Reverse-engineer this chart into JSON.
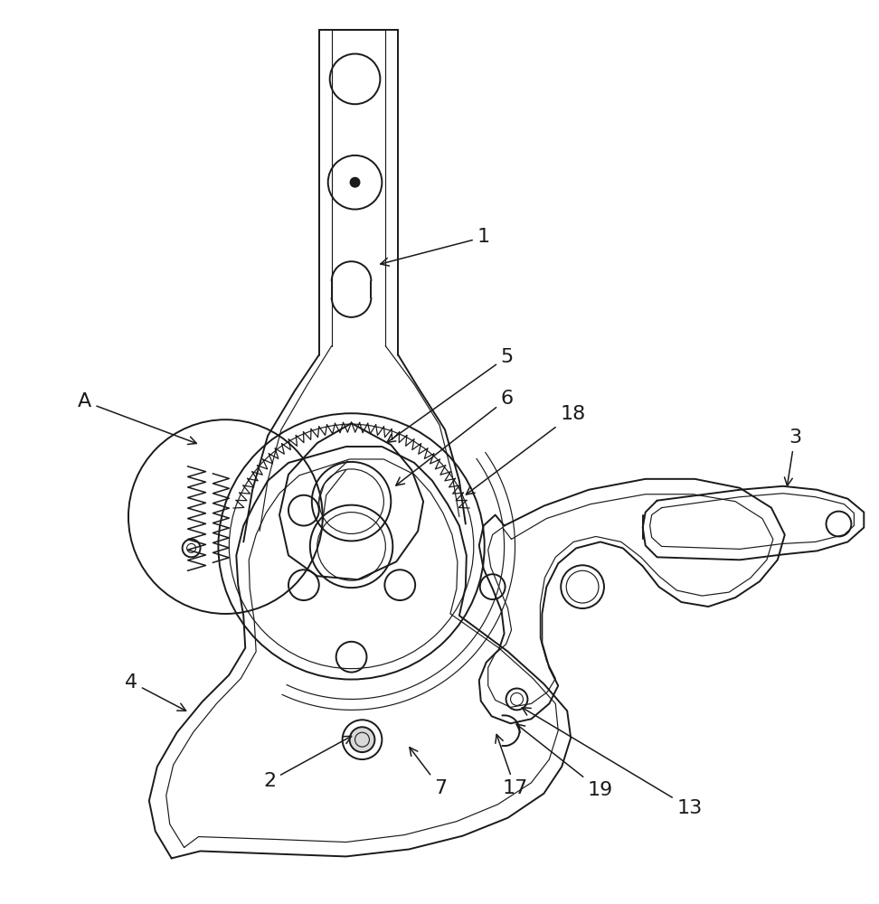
{
  "background_color": "#ffffff",
  "line_color": "#1a1a1a",
  "lw": 1.4,
  "tlw": 0.85,
  "fs": 16
}
